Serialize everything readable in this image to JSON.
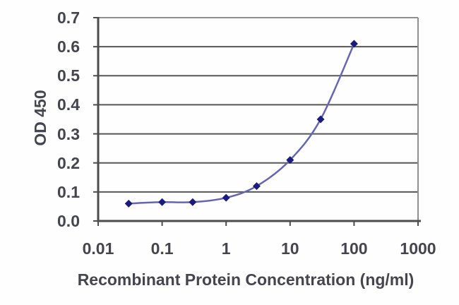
{
  "chart_data": {
    "type": "line",
    "title": "",
    "xlabel": "Recombinant Protein Concentration (ng/ml)",
    "ylabel": "OD 450",
    "x_scale": "log",
    "x": [
      0.03,
      0.1,
      0.3,
      1,
      3,
      10,
      30,
      100
    ],
    "y": [
      0.06,
      0.065,
      0.065,
      0.08,
      0.12,
      0.21,
      0.35,
      0.61
    ],
    "xlim": [
      0.01,
      1000
    ],
    "ylim": [
      0.0,
      0.7
    ],
    "x_ticks": [
      "0.01",
      "0.1",
      "1",
      "10",
      "100",
      "1000"
    ],
    "x_tick_values": [
      0.01,
      0.1,
      1,
      10,
      100,
      1000
    ],
    "y_ticks": [
      "0.0",
      "0.1",
      "0.2",
      "0.3",
      "0.4",
      "0.5",
      "0.6",
      "0.7"
    ],
    "y_tick_values": [
      0.0,
      0.1,
      0.2,
      0.3,
      0.4,
      0.5,
      0.6,
      0.7
    ],
    "grid": true,
    "legend": "none",
    "marker": "diamond",
    "colors": {
      "line": "#6565b5",
      "marker": "#1b1b7d",
      "gridline": "#565656",
      "frame": "#8f8f8f",
      "axis": "#4c4c4c",
      "text": "#45454f",
      "background": "#fefefe"
    }
  }
}
